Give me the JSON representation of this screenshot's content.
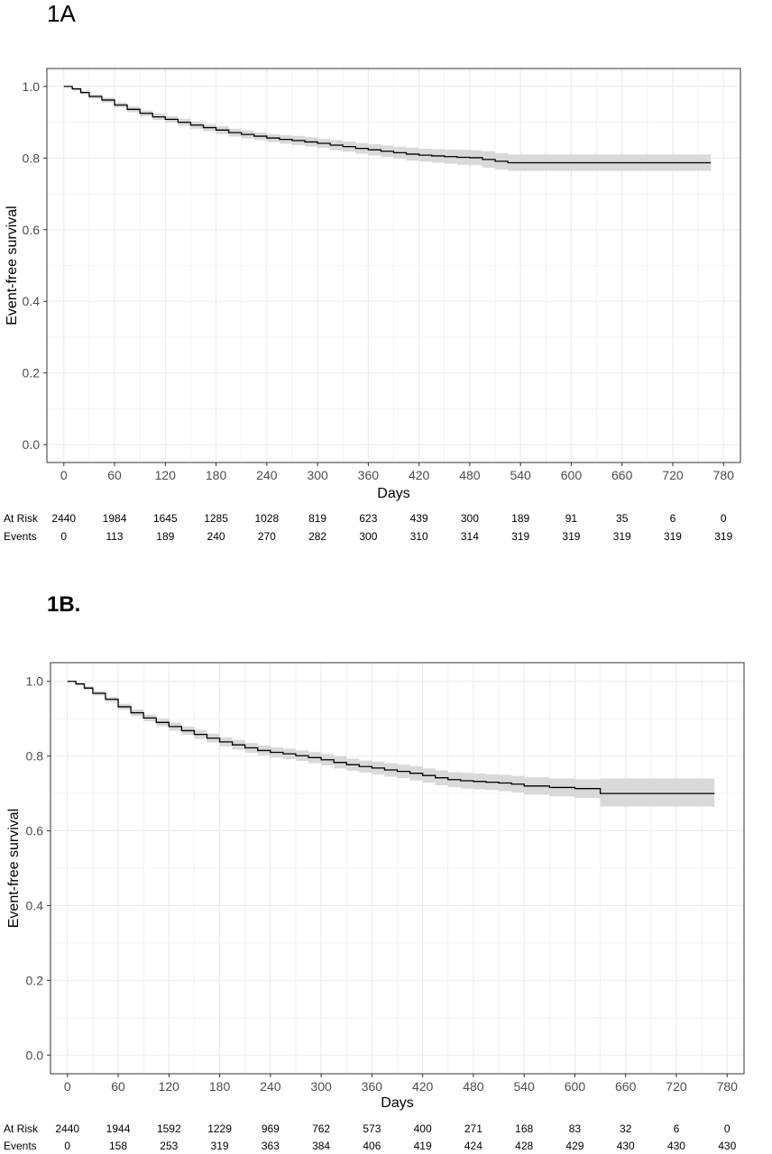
{
  "chart_data": [
    {
      "type": "line",
      "panel_label": "1A",
      "xlabel": "Days",
      "ylabel": "Event-free survival",
      "xlim": [
        -20,
        800
      ],
      "ylim": [
        -0.05,
        1.05
      ],
      "xticks": [
        0,
        60,
        120,
        180,
        240,
        300,
        360,
        420,
        480,
        540,
        600,
        660,
        720,
        780
      ],
      "yticks": [
        0.0,
        0.2,
        0.4,
        0.6,
        0.8,
        1.0
      ],
      "ytick_labels": [
        "0.0",
        "0.2",
        "0.4",
        "0.6",
        "0.8",
        "1.0"
      ],
      "grid": true,
      "confidence_band": true,
      "colors": {
        "line": "#000000",
        "band": "#d9d9d9",
        "grid": "#ebebeb"
      },
      "series": [
        {
          "x": [
            0,
            10,
            20,
            30,
            45,
            60,
            75,
            90,
            105,
            120,
            135,
            150,
            165,
            180,
            195,
            210,
            225,
            240,
            255,
            270,
            285,
            300,
            315,
            330,
            345,
            360,
            375,
            390,
            405,
            420,
            435,
            450,
            465,
            480,
            495,
            510,
            525,
            540,
            600,
            660,
            720,
            765
          ],
          "y": [
            1.0,
            0.993,
            0.983,
            0.972,
            0.962,
            0.948,
            0.936,
            0.925,
            0.915,
            0.908,
            0.9,
            0.892,
            0.885,
            0.878,
            0.871,
            0.866,
            0.861,
            0.856,
            0.852,
            0.849,
            0.845,
            0.841,
            0.836,
            0.832,
            0.827,
            0.823,
            0.819,
            0.815,
            0.811,
            0.808,
            0.806,
            0.804,
            0.802,
            0.801,
            0.796,
            0.791,
            0.787,
            0.787,
            0.787,
            0.787,
            0.787,
            0.787
          ],
          "lower": [
            1.0,
            0.989,
            0.978,
            0.966,
            0.955,
            0.941,
            0.928,
            0.917,
            0.906,
            0.899,
            0.89,
            0.882,
            0.875,
            0.867,
            0.86,
            0.855,
            0.85,
            0.845,
            0.84,
            0.836,
            0.832,
            0.828,
            0.822,
            0.818,
            0.812,
            0.807,
            0.803,
            0.798,
            0.793,
            0.79,
            0.787,
            0.784,
            0.781,
            0.78,
            0.773,
            0.768,
            0.764,
            0.764,
            0.764,
            0.764,
            0.764,
            0.764
          ],
          "upper": [
            1.0,
            0.997,
            0.988,
            0.978,
            0.969,
            0.955,
            0.944,
            0.933,
            0.924,
            0.917,
            0.91,
            0.902,
            0.895,
            0.889,
            0.882,
            0.877,
            0.872,
            0.867,
            0.864,
            0.862,
            0.858,
            0.854,
            0.85,
            0.846,
            0.842,
            0.839,
            0.835,
            0.832,
            0.829,
            0.826,
            0.825,
            0.824,
            0.823,
            0.822,
            0.819,
            0.814,
            0.81,
            0.81,
            0.81,
            0.81,
            0.81,
            0.81
          ]
        }
      ],
      "risk_table": {
        "times": [
          0,
          60,
          120,
          180,
          240,
          300,
          360,
          420,
          480,
          540,
          600,
          660,
          720,
          780
        ],
        "rows": [
          {
            "label": "At Risk",
            "values": [
              "2440",
              "1984",
              "1645",
              "1285",
              "1028",
              "819",
              "623",
              "439",
              "300",
              "189",
              "91",
              "35",
              "6",
              "0"
            ]
          },
          {
            "label": "Events",
            "values": [
              "0",
              "113",
              "189",
              "240",
              "270",
              "282",
              "300",
              "310",
              "314",
              "319",
              "319",
              "319",
              "319",
              "319"
            ]
          }
        ]
      }
    },
    {
      "type": "line",
      "panel_label": "1B.",
      "xlabel": "Days",
      "ylabel": "Event-free survival",
      "xlim": [
        -20,
        800
      ],
      "ylim": [
        -0.05,
        1.05
      ],
      "xticks": [
        0,
        60,
        120,
        180,
        240,
        300,
        360,
        420,
        480,
        540,
        600,
        660,
        720,
        780
      ],
      "yticks": [
        0.0,
        0.2,
        0.4,
        0.6,
        0.8,
        1.0
      ],
      "ytick_labels": [
        "0.0",
        "0.2",
        "0.4",
        "0.6",
        "0.8",
        "1.0"
      ],
      "grid": true,
      "confidence_band": true,
      "colors": {
        "line": "#000000",
        "band": "#d9d9d9",
        "grid": "#ebebeb"
      },
      "series": [
        {
          "x": [
            0,
            10,
            20,
            30,
            45,
            60,
            75,
            90,
            105,
            120,
            135,
            150,
            165,
            180,
            195,
            210,
            225,
            240,
            255,
            270,
            285,
            300,
            315,
            330,
            345,
            360,
            375,
            390,
            405,
            420,
            435,
            450,
            465,
            480,
            495,
            510,
            525,
            540,
            570,
            600,
            630,
            660,
            720,
            765
          ],
          "y": [
            1.0,
            0.993,
            0.982,
            0.968,
            0.952,
            0.932,
            0.916,
            0.902,
            0.89,
            0.879,
            0.868,
            0.858,
            0.848,
            0.838,
            0.83,
            0.822,
            0.815,
            0.81,
            0.806,
            0.801,
            0.796,
            0.79,
            0.783,
            0.777,
            0.772,
            0.768,
            0.763,
            0.759,
            0.754,
            0.748,
            0.742,
            0.737,
            0.734,
            0.732,
            0.73,
            0.728,
            0.725,
            0.72,
            0.716,
            0.713,
            0.7,
            0.7,
            0.7,
            0.7
          ],
          "lower": [
            1.0,
            0.989,
            0.977,
            0.962,
            0.945,
            0.924,
            0.907,
            0.893,
            0.88,
            0.868,
            0.857,
            0.846,
            0.836,
            0.826,
            0.817,
            0.809,
            0.802,
            0.796,
            0.792,
            0.787,
            0.781,
            0.775,
            0.767,
            0.761,
            0.756,
            0.751,
            0.745,
            0.741,
            0.735,
            0.729,
            0.722,
            0.717,
            0.713,
            0.711,
            0.709,
            0.706,
            0.703,
            0.697,
            0.692,
            0.688,
            0.665,
            0.665,
            0.665,
            0.665
          ],
          "upper": [
            1.0,
            0.997,
            0.987,
            0.974,
            0.959,
            0.94,
            0.925,
            0.911,
            0.9,
            0.89,
            0.879,
            0.87,
            0.86,
            0.85,
            0.843,
            0.835,
            0.828,
            0.824,
            0.82,
            0.815,
            0.811,
            0.805,
            0.799,
            0.793,
            0.788,
            0.785,
            0.781,
            0.777,
            0.773,
            0.767,
            0.762,
            0.757,
            0.755,
            0.753,
            0.751,
            0.75,
            0.747,
            0.743,
            0.74,
            0.738,
            0.74,
            0.74,
            0.74,
            0.74
          ]
        }
      ],
      "risk_table": {
        "times": [
          0,
          60,
          120,
          180,
          240,
          300,
          360,
          420,
          480,
          540,
          600,
          660,
          720,
          780
        ],
        "rows": [
          {
            "label": "At Risk",
            "values": [
              "2440",
              "1944",
              "1592",
              "1229",
              "969",
              "762",
              "573",
              "400",
              "271",
              "168",
              "83",
              "32",
              "6",
              "0"
            ]
          },
          {
            "label": "Events",
            "values": [
              "0",
              "158",
              "253",
              "319",
              "363",
              "384",
              "406",
              "419",
              "424",
              "428",
              "429",
              "430",
              "430",
              "430"
            ]
          }
        ]
      }
    }
  ]
}
